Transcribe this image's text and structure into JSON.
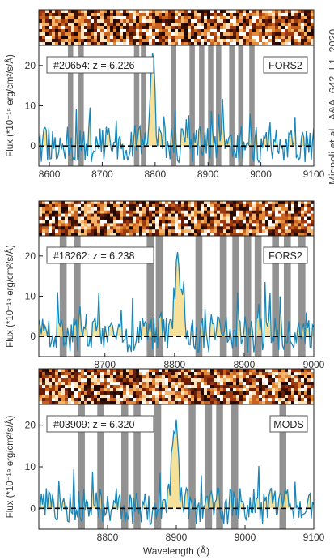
{
  "credit": "Mignoli et al., A&A, 642, L1, 2020",
  "chart_data": [
    {
      "type": "line",
      "label": "#20654: z = 6.226",
      "instrument": "FORS2",
      "ylabel": "Flux (*10⁻¹⁹ erg/cm²/s/Å)",
      "xlim": [
        8580,
        9100
      ],
      "ylim": [
        -5,
        25
      ],
      "xticks": [
        "8600",
        "8700",
        "8800",
        "8900",
        "9000",
        "9100"
      ],
      "yticks": [
        "0",
        "10",
        "20"
      ],
      "sky_lines": [
        8640,
        8660,
        8765,
        8778,
        8835,
        8870,
        8888,
        8905,
        8920,
        8945,
        8962,
        8983
      ],
      "seed": 11,
      "line_center": 8795,
      "line_peak": 22,
      "spectrum_color": "#1a86b8",
      "fill_color": "#f5dc88",
      "sky_color": "#8c8c8c"
    },
    {
      "type": "line",
      "label": "#18262: z = 6.238",
      "instrument": "FORS2",
      "ylabel": "Flux (*10⁻¹⁹ erg/cm²/s/Å)",
      "xlim": [
        8605,
        9000
      ],
      "ylim": [
        -5,
        25
      ],
      "xticks": [
        "8700",
        "8800",
        "8900",
        "9000"
      ],
      "yticks": [
        "0",
        "10",
        "20"
      ],
      "sky_lines": [
        8640,
        8660,
        8765,
        8778,
        8835,
        8870,
        8888,
        8905,
        8920,
        8945,
        8962,
        8983
      ],
      "seed": 29,
      "line_center": 8805,
      "line_peak": 18,
      "spectrum_color": "#1a86b8",
      "fill_color": "#f5dc88",
      "sky_color": "#8c8c8c"
    },
    {
      "type": "line",
      "label": "#03909: z = 6.320",
      "instrument": "MODS",
      "ylabel": "Flux (*10⁻¹⁹ erg/cm²/s/Å)",
      "xlabel": "Wavelength (Å)",
      "xlim": [
        8700,
        9100
      ],
      "ylim": [
        -5,
        25
      ],
      "xticks": [
        "8800",
        "8900",
        "9000",
        "9100"
      ],
      "yticks": [
        "0",
        "10",
        "20"
      ],
      "sky_lines": [
        8762,
        8790,
        8825,
        8843,
        8873,
        8923,
        8947,
        8963,
        8985,
        9055
      ],
      "seed": 53,
      "line_center": 8898,
      "line_peak": 19,
      "spectrum_color": "#1a86b8",
      "fill_color": "#f5dc88",
      "sky_color": "#8c8c8c"
    }
  ]
}
